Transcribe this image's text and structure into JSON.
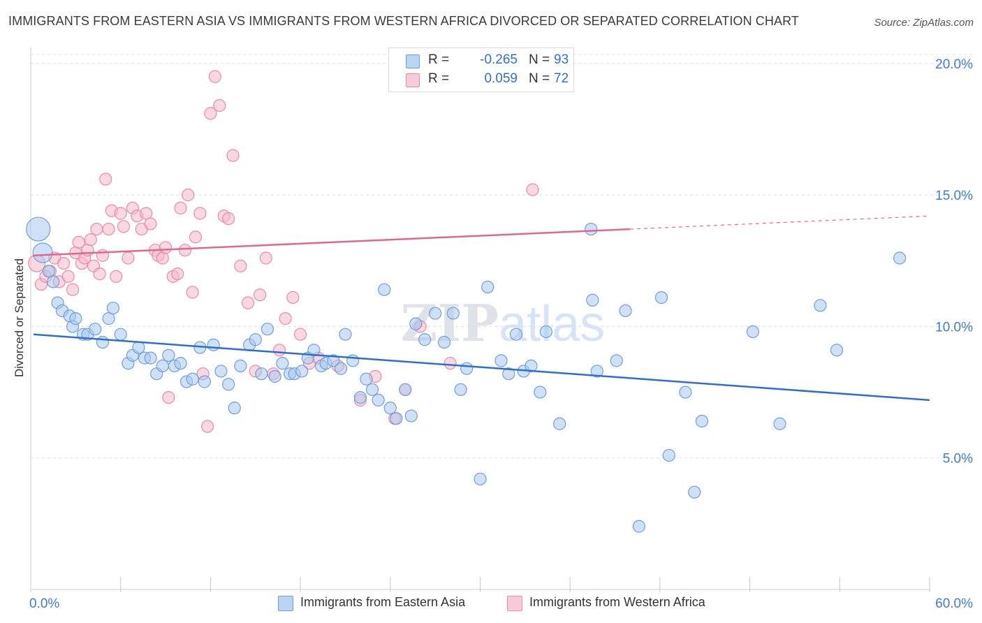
{
  "title": "IMMIGRANTS FROM EASTERN ASIA VS IMMIGRANTS FROM WESTERN AFRICA DIVORCED OR SEPARATED CORRELATION CHART",
  "source": "Source: ZipAtlas.com",
  "watermark": "ZIPatlas",
  "legend": {
    "r_label": "R =",
    "n_label": "N =",
    "series": [
      {
        "r": "-0.265",
        "n": "93",
        "color": "#a9c8ef"
      },
      {
        "r": "0.059",
        "n": "72",
        "color": "#f5b8cb"
      }
    ]
  },
  "colors": {
    "blue_fill": "#a9c8ef",
    "blue_stroke": "#6d9fdc",
    "blue_line": "#2d6fcf",
    "pink_fill": "#f5b8cb",
    "pink_stroke": "#e88aa8",
    "pink_line": "#e0678f",
    "axis_text": "#3f7bd0",
    "grid": "#dddddd"
  },
  "chart_data": {
    "type": "scatter",
    "title": "IMMIGRANTS FROM EASTERN ASIA VS IMMIGRANTS FROM WESTERN AFRICA DIVORCED OR SEPARATED CORRELATION CHART",
    "xlabel": "",
    "ylabel": "Divorced or Separated",
    "xlim": [
      0,
      60
    ],
    "ylim": [
      0,
      20.5
    ],
    "x_ticks_labeled": [
      "0.0%",
      "60.0%"
    ],
    "y_ticks": [
      5,
      10,
      15,
      20
    ],
    "y_tick_labels": [
      "5.0%",
      "10.0%",
      "15.0%",
      "20.0%"
    ],
    "grid": "horizontal dashed",
    "legend_position": "top-center",
    "series": [
      {
        "name": "Immigrants from Eastern Asia",
        "color": "#a9c8ef",
        "trend": {
          "x": [
            0,
            60
          ],
          "y": [
            9.7,
            7.2
          ]
        },
        "points": [
          [
            0.5,
            13.7
          ],
          [
            0.8,
            12.8
          ],
          [
            1.2,
            12.1
          ],
          [
            1.5,
            11.7
          ],
          [
            1.8,
            10.9
          ],
          [
            2.1,
            10.6
          ],
          [
            2.6,
            10.4
          ],
          [
            2.8,
            10.0
          ],
          [
            3.0,
            10.3
          ],
          [
            3.5,
            9.7
          ],
          [
            3.8,
            9.7
          ],
          [
            4.3,
            9.9
          ],
          [
            4.8,
            9.4
          ],
          [
            5.2,
            10.3
          ],
          [
            5.5,
            10.7
          ],
          [
            6.0,
            9.7
          ],
          [
            6.5,
            8.6
          ],
          [
            6.8,
            8.9
          ],
          [
            7.2,
            9.2
          ],
          [
            7.6,
            8.8
          ],
          [
            8.0,
            8.8
          ],
          [
            8.4,
            8.2
          ],
          [
            8.8,
            8.5
          ],
          [
            9.2,
            8.9
          ],
          [
            9.6,
            8.5
          ],
          [
            10.0,
            8.6
          ],
          [
            10.4,
            7.9
          ],
          [
            10.8,
            8.0
          ],
          [
            11.3,
            9.2
          ],
          [
            11.6,
            7.9
          ],
          [
            12.2,
            9.3
          ],
          [
            12.7,
            8.3
          ],
          [
            13.2,
            7.8
          ],
          [
            13.6,
            6.9
          ],
          [
            14.0,
            8.5
          ],
          [
            14.6,
            9.3
          ],
          [
            15.0,
            9.5
          ],
          [
            15.4,
            8.2
          ],
          [
            15.8,
            9.9
          ],
          [
            16.3,
            8.1
          ],
          [
            16.8,
            8.6
          ],
          [
            17.3,
            8.2
          ],
          [
            17.6,
            8.2
          ],
          [
            18.1,
            8.3
          ],
          [
            18.5,
            8.8
          ],
          [
            18.9,
            9.1
          ],
          [
            19.4,
            8.5
          ],
          [
            19.7,
            8.6
          ],
          [
            20.2,
            8.7
          ],
          [
            20.7,
            8.4
          ],
          [
            21.0,
            9.7
          ],
          [
            21.5,
            8.7
          ],
          [
            22.0,
            7.3
          ],
          [
            22.4,
            8.0
          ],
          [
            22.8,
            7.6
          ],
          [
            23.2,
            7.2
          ],
          [
            23.6,
            11.4
          ],
          [
            24.0,
            6.9
          ],
          [
            24.4,
            6.5
          ],
          [
            25.0,
            7.6
          ],
          [
            25.4,
            6.6
          ],
          [
            25.7,
            10.1
          ],
          [
            26.3,
            9.5
          ],
          [
            27.0,
            10.5
          ],
          [
            27.6,
            9.4
          ],
          [
            28.2,
            10.5
          ],
          [
            28.7,
            7.6
          ],
          [
            29.1,
            8.4
          ],
          [
            30.0,
            4.2
          ],
          [
            30.5,
            11.5
          ],
          [
            31.4,
            8.7
          ],
          [
            31.9,
            8.2
          ],
          [
            32.4,
            9.7
          ],
          [
            32.9,
            8.3
          ],
          [
            33.4,
            8.5
          ],
          [
            34.0,
            7.5
          ],
          [
            34.4,
            9.8
          ],
          [
            35.3,
            6.3
          ],
          [
            37.4,
            13.7
          ],
          [
            37.5,
            11.0
          ],
          [
            37.8,
            8.3
          ],
          [
            39.1,
            8.7
          ],
          [
            39.7,
            10.6
          ],
          [
            40.6,
            2.4
          ],
          [
            42.1,
            11.1
          ],
          [
            42.6,
            5.1
          ],
          [
            43.7,
            7.5
          ],
          [
            44.3,
            3.7
          ],
          [
            44.8,
            6.4
          ],
          [
            48.2,
            9.8
          ],
          [
            50.0,
            6.3
          ],
          [
            52.7,
            10.8
          ],
          [
            53.8,
            9.1
          ],
          [
            58.0,
            12.6
          ]
        ]
      },
      {
        "name": "Immigrants from Western Africa",
        "color": "#f5b8cb",
        "trend": {
          "x": [
            0,
            40
          ],
          "y": [
            12.7,
            13.7
          ]
        },
        "trend_dashed": {
          "x": [
            40,
            60
          ],
          "y": [
            13.7,
            14.2
          ]
        },
        "points": [
          [
            0.4,
            12.4
          ],
          [
            0.7,
            11.6
          ],
          [
            1.0,
            11.9
          ],
          [
            1.3,
            12.1
          ],
          [
            1.6,
            12.6
          ],
          [
            1.9,
            11.7
          ],
          [
            2.2,
            12.4
          ],
          [
            2.5,
            11.9
          ],
          [
            2.8,
            11.4
          ],
          [
            3.0,
            12.8
          ],
          [
            3.2,
            13.2
          ],
          [
            3.4,
            12.4
          ],
          [
            3.6,
            12.6
          ],
          [
            3.8,
            12.9
          ],
          [
            4.0,
            13.3
          ],
          [
            4.2,
            12.3
          ],
          [
            4.4,
            13.7
          ],
          [
            4.6,
            12.0
          ],
          [
            4.8,
            12.7
          ],
          [
            5.0,
            15.6
          ],
          [
            5.2,
            13.7
          ],
          [
            5.4,
            14.4
          ],
          [
            5.7,
            11.9
          ],
          [
            6.0,
            14.3
          ],
          [
            6.2,
            13.8
          ],
          [
            6.5,
            12.6
          ],
          [
            6.8,
            14.5
          ],
          [
            7.1,
            14.2
          ],
          [
            7.4,
            13.7
          ],
          [
            7.7,
            14.3
          ],
          [
            8.0,
            13.9
          ],
          [
            8.3,
            12.9
          ],
          [
            8.5,
            12.7
          ],
          [
            8.8,
            12.6
          ],
          [
            9.0,
            13.0
          ],
          [
            9.2,
            7.3
          ],
          [
            9.5,
            11.9
          ],
          [
            9.8,
            12.0
          ],
          [
            10.0,
            14.5
          ],
          [
            10.3,
            12.9
          ],
          [
            10.5,
            15.0
          ],
          [
            10.8,
            11.3
          ],
          [
            11.0,
            13.4
          ],
          [
            11.3,
            14.3
          ],
          [
            11.5,
            8.2
          ],
          [
            11.8,
            6.2
          ],
          [
            12.0,
            18.1
          ],
          [
            12.3,
            19.5
          ],
          [
            12.6,
            18.4
          ],
          [
            12.9,
            14.2
          ],
          [
            13.2,
            14.1
          ],
          [
            13.5,
            16.5
          ],
          [
            14.0,
            12.3
          ],
          [
            14.5,
            10.9
          ],
          [
            15.0,
            8.3
          ],
          [
            15.3,
            11.2
          ],
          [
            15.7,
            12.6
          ],
          [
            16.2,
            8.2
          ],
          [
            16.6,
            9.1
          ],
          [
            17.0,
            10.3
          ],
          [
            17.5,
            11.1
          ],
          [
            18.0,
            9.7
          ],
          [
            18.6,
            8.6
          ],
          [
            19.2,
            8.8
          ],
          [
            20.5,
            8.5
          ],
          [
            22.0,
            7.2
          ],
          [
            23.0,
            8.1
          ],
          [
            24.3,
            6.5
          ],
          [
            25.0,
            7.6
          ],
          [
            26.0,
            10.0
          ],
          [
            28.0,
            8.6
          ],
          [
            33.5,
            15.2
          ]
        ]
      }
    ]
  },
  "axes": {
    "x_min_label": "0.0%",
    "x_max_label": "60.0%",
    "y_label": "Divorced or Separated"
  }
}
